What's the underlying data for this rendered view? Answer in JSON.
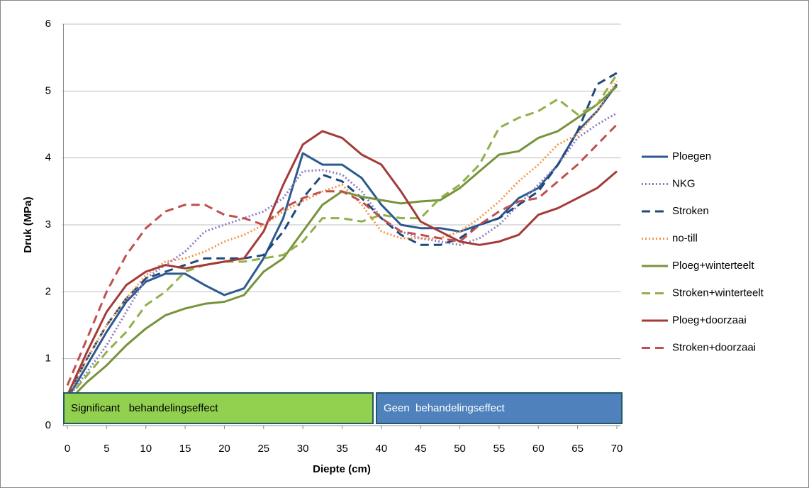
{
  "chart_data": {
    "type": "line",
    "x_label": "Diepte (cm)",
    "y_label": "Druk (MPa)",
    "x": [
      0,
      2.5,
      5,
      7.5,
      10,
      12.5,
      15,
      17.5,
      20,
      22.5,
      25,
      27.5,
      30,
      32.5,
      35,
      37.5,
      40,
      42.5,
      45,
      47.5,
      50,
      52.5,
      55,
      57.5,
      60,
      62.5,
      65,
      67.5,
      70
    ],
    "xlim": [
      -0.5,
      70.5
    ],
    "xticks": [
      0,
      5,
      10,
      15,
      20,
      25,
      30,
      35,
      40,
      45,
      50,
      55,
      60,
      65,
      70
    ],
    "ylim": [
      0,
      6
    ],
    "yticks": [
      0,
      1,
      2,
      3,
      4,
      5,
      6
    ],
    "grid": true,
    "legend": "right",
    "annotations": [
      "Significant   behandelingseffect",
      "Geen  behandelingseffect"
    ],
    "series": [
      {
        "name": "Ploegen",
        "color": "#2c5a8f",
        "style": "solid",
        "values": [
          0.4,
          0.9,
          1.4,
          1.85,
          2.15,
          2.27,
          2.27,
          2.1,
          1.95,
          2.05,
          2.5,
          3.1,
          4.07,
          3.9,
          3.9,
          3.7,
          3.3,
          3.0,
          2.95,
          2.95,
          2.9,
          3.0,
          3.1,
          3.4,
          3.55,
          3.9,
          4.4,
          4.7,
          5.1
        ]
      },
      {
        "name": "NKG",
        "color": "#8e7cc3",
        "style": "dotted",
        "values": [
          0.4,
          0.8,
          1.2,
          1.7,
          2.2,
          2.4,
          2.6,
          2.9,
          3.0,
          3.1,
          3.2,
          3.4,
          3.8,
          3.82,
          3.75,
          3.5,
          3.1,
          2.9,
          2.8,
          2.75,
          2.7,
          2.8,
          3.0,
          3.3,
          3.6,
          3.9,
          4.3,
          4.5,
          4.67
        ]
      },
      {
        "name": "Stroken",
        "color": "#1f497d",
        "style": "dashed",
        "values": [
          0.45,
          1.0,
          1.5,
          1.9,
          2.2,
          2.3,
          2.4,
          2.5,
          2.5,
          2.5,
          2.55,
          2.9,
          3.4,
          3.75,
          3.65,
          3.4,
          3.1,
          2.85,
          2.7,
          2.7,
          2.8,
          3.0,
          3.1,
          3.3,
          3.5,
          3.9,
          4.4,
          5.1,
          5.27
        ]
      },
      {
        "name": "no-till",
        "color": "#f79646",
        "style": "dotted",
        "values": [
          0.45,
          1.0,
          1.5,
          1.9,
          2.25,
          2.45,
          2.5,
          2.6,
          2.75,
          2.85,
          3.0,
          3.2,
          3.35,
          3.5,
          3.6,
          3.3,
          2.9,
          2.8,
          2.8,
          2.8,
          2.9,
          3.1,
          3.35,
          3.65,
          3.9,
          4.2,
          4.35,
          4.7,
          5.15
        ]
      },
      {
        "name": "Ploeg+winterteelt",
        "color": "#77933c",
        "style": "solid",
        "values": [
          0.35,
          0.65,
          0.9,
          1.2,
          1.45,
          1.65,
          1.75,
          1.82,
          1.85,
          1.95,
          2.3,
          2.5,
          2.9,
          3.3,
          3.5,
          3.42,
          3.37,
          3.32,
          3.35,
          3.37,
          3.55,
          3.8,
          4.05,
          4.1,
          4.3,
          4.4,
          4.6,
          4.8,
          5.07
        ]
      },
      {
        "name": "Stroken+winterteelt",
        "color": "#8fb04a",
        "style": "dashed",
        "values": [
          0.4,
          0.75,
          1.1,
          1.4,
          1.8,
          2.0,
          2.3,
          2.4,
          2.45,
          2.45,
          2.5,
          2.55,
          2.75,
          3.1,
          3.1,
          3.05,
          3.15,
          3.1,
          3.1,
          3.4,
          3.6,
          3.9,
          4.45,
          4.6,
          4.7,
          4.88,
          4.65,
          4.8,
          5.25
        ]
      },
      {
        "name": "Ploeg+doorzaai",
        "color": "#a33b38",
        "style": "solid",
        "values": [
          0.45,
          1.1,
          1.7,
          2.1,
          2.3,
          2.4,
          2.35,
          2.4,
          2.45,
          2.5,
          2.9,
          3.6,
          4.2,
          4.4,
          4.3,
          4.05,
          3.9,
          3.5,
          3.05,
          2.9,
          2.75,
          2.7,
          2.75,
          2.85,
          3.15,
          3.25,
          3.4,
          3.55,
          3.8
        ]
      },
      {
        "name": "Stroken+doorzaai",
        "color": "#c0504d",
        "style": "dashed",
        "values": [
          0.6,
          1.3,
          2.0,
          2.55,
          2.95,
          3.2,
          3.3,
          3.3,
          3.15,
          3.1,
          3.0,
          3.25,
          3.4,
          3.5,
          3.5,
          3.35,
          3.1,
          2.9,
          2.85,
          2.8,
          2.75,
          3.0,
          3.2,
          3.35,
          3.4,
          3.65,
          3.9,
          4.2,
          4.5
        ]
      }
    ]
  }
}
